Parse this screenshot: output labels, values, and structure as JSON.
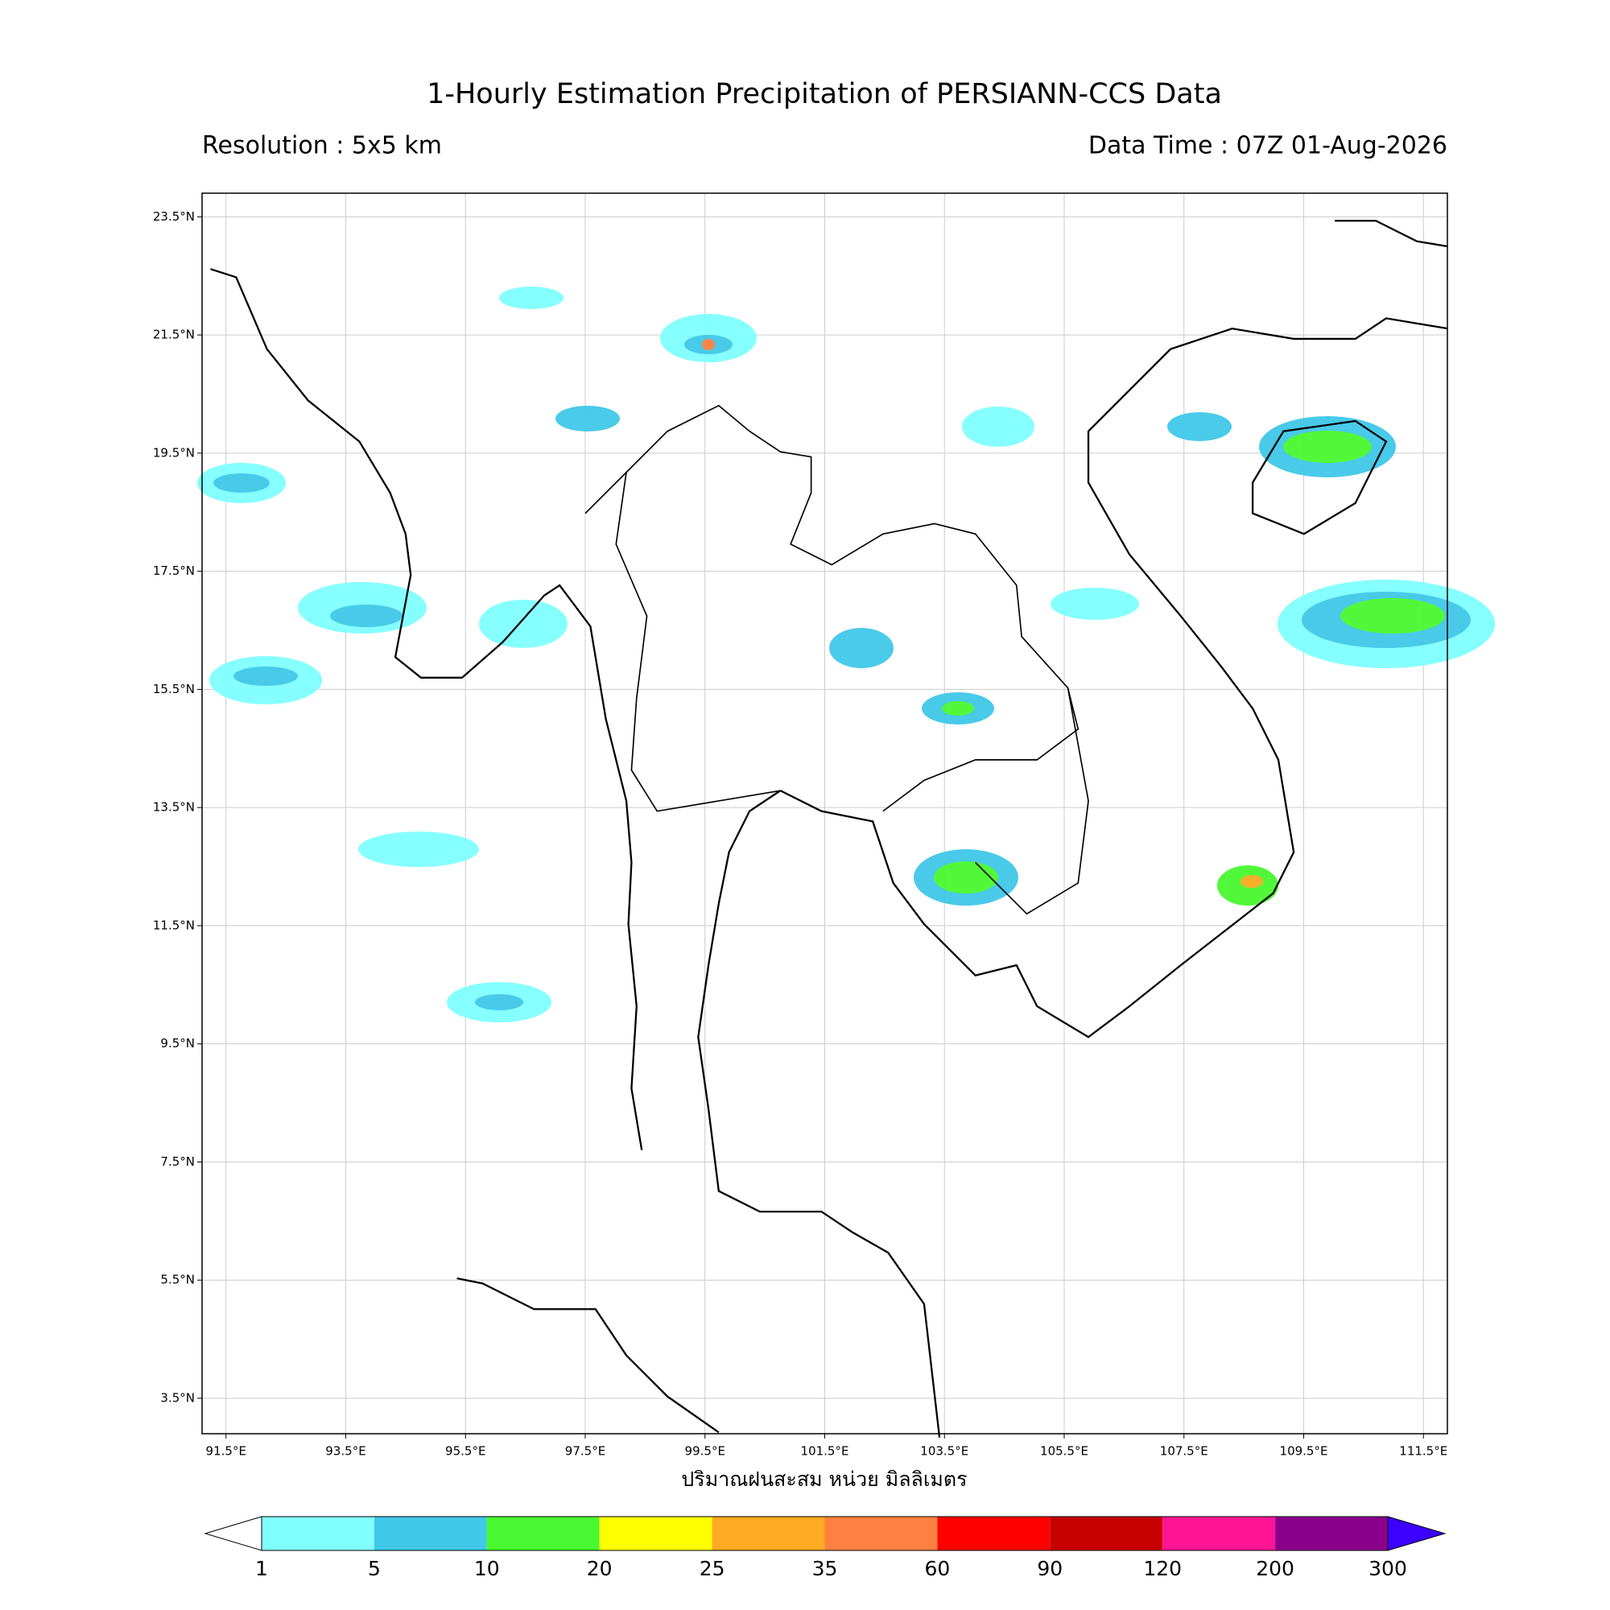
{
  "map": {
    "title": "1-Hourly Estimation Precipitation of PERSIANN-CCS Data",
    "subtitle_left": "Resolution : 5x5 km",
    "subtitle_right": "Data Time : 07Z 01-Aug-2026",
    "xlabel": "ปริมาณฝนสะสม หน่วย มิลลิเมตร",
    "xlim": [
      91.1,
      111.9
    ],
    "ylim": [
      2.9,
      23.9
    ],
    "xticks": [
      {
        "value": 91.5,
        "label": "91.5°E"
      },
      {
        "value": 93.5,
        "label": "93.5°E"
      },
      {
        "value": 95.5,
        "label": "95.5°E"
      },
      {
        "value": 97.5,
        "label": "97.5°E"
      },
      {
        "value": 99.5,
        "label": "99.5°E"
      },
      {
        "value": 101.5,
        "label": "101.5°E"
      },
      {
        "value": 103.5,
        "label": "103.5°E"
      },
      {
        "value": 105.5,
        "label": "105.5°E"
      },
      {
        "value": 107.5,
        "label": "107.5°E"
      },
      {
        "value": 109.5,
        "label": "109.5°E"
      },
      {
        "value": 111.5,
        "label": "111.5°E"
      }
    ],
    "yticks": [
      {
        "value": 3.5,
        "label": "3.5°N"
      },
      {
        "value": 5.5,
        "label": "5.5°N"
      },
      {
        "value": 7.5,
        "label": "7.5°N"
      },
      {
        "value": 9.5,
        "label": "9.5°N"
      },
      {
        "value": 11.5,
        "label": "11.5°N"
      },
      {
        "value": 13.5,
        "label": "13.5°N"
      },
      {
        "value": 15.5,
        "label": "15.5°N"
      },
      {
        "value": 17.5,
        "label": "17.5°N"
      },
      {
        "value": 19.5,
        "label": "19.5°N"
      },
      {
        "value": 21.5,
        "label": "21.5°N"
      },
      {
        "value": 23.5,
        "label": "23.5°N"
      }
    ],
    "grid": true,
    "colorbar": {
      "levels": [
        1,
        5,
        10,
        20,
        25,
        35,
        60,
        90,
        120,
        200,
        300
      ],
      "colors": [
        "#80ffff",
        "#40c8e8",
        "#48f830",
        "#ffff00",
        "#ffaa20",
        "#ff8040",
        "#ff0000",
        "#c80000",
        "#ff1493",
        "#8b008b"
      ],
      "under_color": "#ffffff",
      "over_color": "#3c00ff"
    }
  }
}
